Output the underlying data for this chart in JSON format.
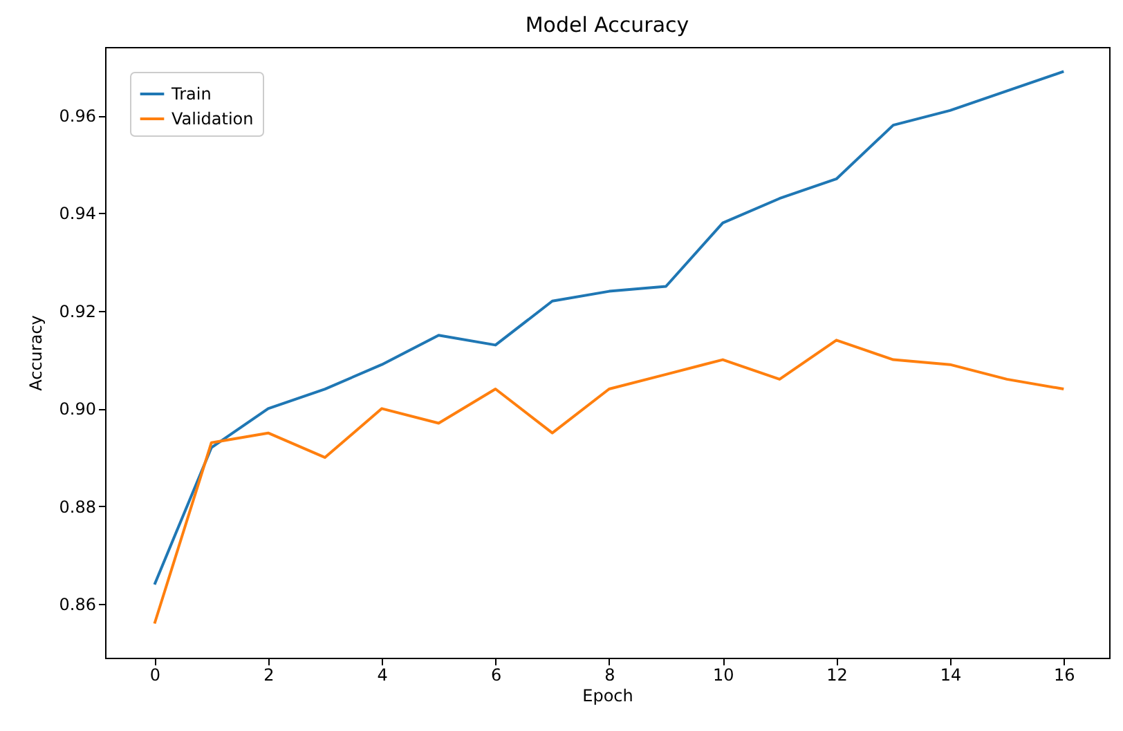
{
  "chart_data": {
    "type": "line",
    "title": "Model Accuracy",
    "xlabel": "Epoch",
    "ylabel": "Accuracy",
    "x": [
      0,
      1,
      2,
      3,
      4,
      5,
      6,
      7,
      8,
      9,
      10,
      11,
      12,
      13,
      14,
      15,
      16
    ],
    "series": [
      {
        "name": "Train",
        "color": "#1f77b4",
        "values": [
          0.864,
          0.892,
          0.9,
          0.904,
          0.909,
          0.915,
          0.913,
          0.922,
          0.924,
          0.925,
          0.938,
          0.943,
          0.947,
          0.958,
          0.961,
          0.965,
          0.969
        ]
      },
      {
        "name": "Validation",
        "color": "#ff7f0e",
        "values": [
          0.856,
          0.893,
          0.895,
          0.89,
          0.9,
          0.897,
          0.904,
          0.895,
          0.904,
          0.907,
          0.91,
          0.906,
          0.914,
          0.91,
          0.909,
          0.906,
          0.904
        ]
      }
    ],
    "xlim": [
      -0.87,
      16.8
    ],
    "xticks": [
      0,
      2,
      4,
      6,
      8,
      10,
      12,
      14,
      16
    ],
    "ylim": [
      0.849,
      0.974
    ],
    "yticks": [
      0.86,
      0.88,
      {
        "value": 0.9,
        "label": "0.90"
      },
      0.92,
      0.94,
      0.96
    ],
    "legend": "top left",
    "grid": false,
    "marker": "none",
    "line_style": "solid"
  }
}
